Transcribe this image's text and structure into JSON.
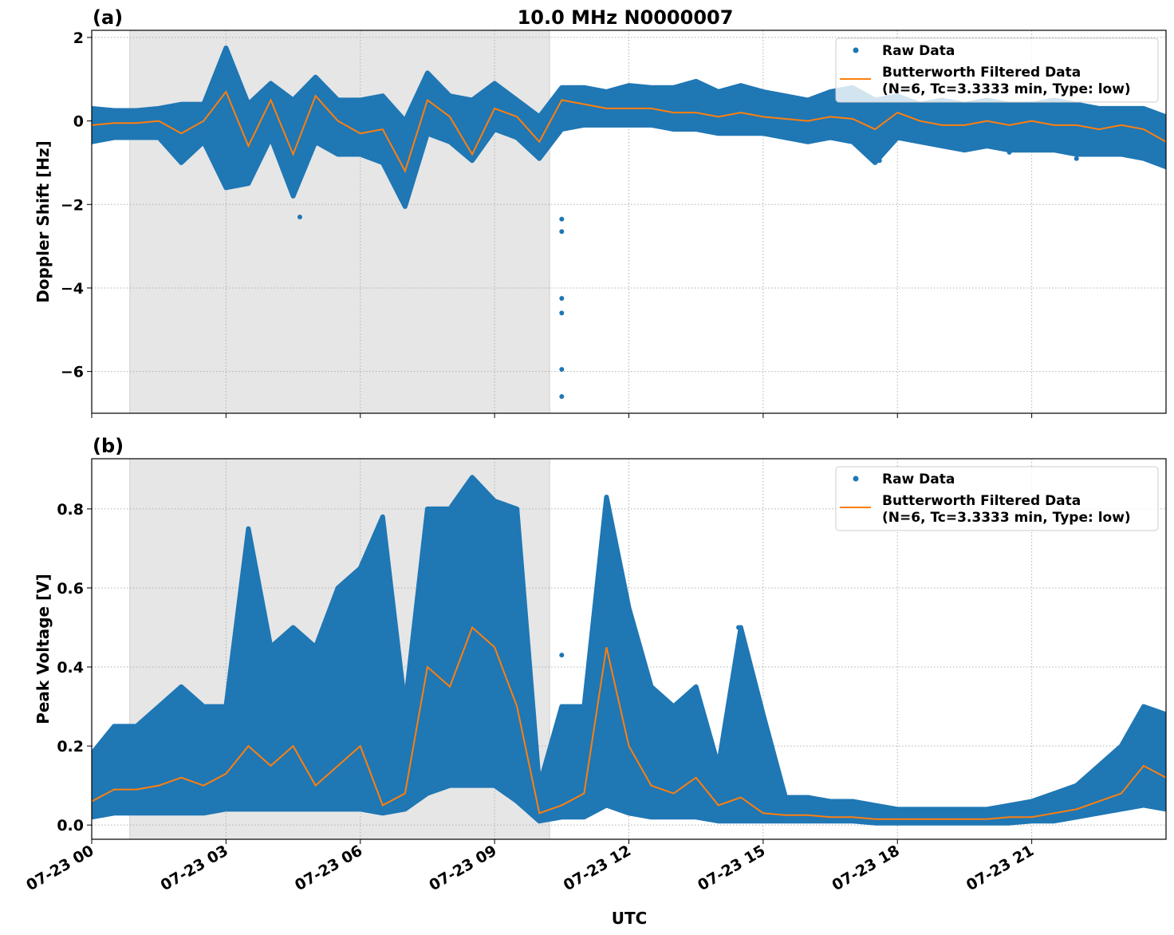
{
  "title": "10.0 MHz N0000007",
  "colors": {
    "raw": "#1f77b4",
    "filtered": "#ff7f0e",
    "shade": "#e6e6e6",
    "grid": "#b0b0b0"
  },
  "x_tick_labels": [
    "07-23 00",
    "07-23 03",
    "07-23 06",
    "07-23 09",
    "07-23 12",
    "07-23 15",
    "07-23 18",
    "07-23 21"
  ],
  "x_ticks_hours": [
    0,
    3,
    6,
    9,
    12,
    15,
    18,
    21
  ],
  "xlabel": "UTC",
  "chart_data": [
    {
      "type": "scatter",
      "panel_label": "(a)",
      "ylabel": "Doppler Shift [Hz]",
      "xlim_hours": [
        0,
        24
      ],
      "ylim": [
        -7.0,
        2.17
      ],
      "y_ticks": [
        2,
        0,
        -2,
        -4,
        -6
      ],
      "y_tick_labels": [
        "2",
        "0",
        "−2",
        "−4",
        "−6"
      ],
      "grid": true,
      "legend_position": "top-right",
      "legend": [
        "Raw Data",
        "Butterworth Filtered Data",
        "(N=6, Tc=3.3333 min, Type: low)"
      ],
      "shaded_interval_hours": [
        0.85,
        10.23
      ],
      "x_hours_step": 0.5,
      "raw_high": [
        0.3,
        0.25,
        0.25,
        0.3,
        0.4,
        0.4,
        1.75,
        0.4,
        0.9,
        0.5,
        1.05,
        0.5,
        0.5,
        0.6,
        0.0,
        1.15,
        0.6,
        0.5,
        0.9,
        0.5,
        0.1,
        0.8,
        0.8,
        0.7,
        0.85,
        0.8,
        0.8,
        0.95,
        0.7,
        0.85,
        0.7,
        0.6,
        0.5,
        0.7,
        0.8,
        0.5,
        0.6,
        0.4,
        0.5,
        0.4,
        0.5,
        0.4,
        0.4,
        0.5,
        0.4,
        0.3,
        0.3,
        0.3,
        0.1
      ],
      "raw_low": [
        -0.5,
        -0.4,
        -0.4,
        -0.4,
        -1.0,
        -0.5,
        -1.6,
        -1.5,
        -0.4,
        -1.8,
        -0.5,
        -0.8,
        -0.8,
        -1.0,
        -2.05,
        -0.3,
        -0.5,
        -0.95,
        -0.2,
        -0.4,
        -0.9,
        -0.2,
        -0.1,
        -0.1,
        -0.1,
        -0.1,
        -0.2,
        -0.2,
        -0.3,
        -0.3,
        -0.3,
        -0.4,
        -0.5,
        -0.4,
        -0.5,
        -1.0,
        -0.4,
        -0.5,
        -0.6,
        -0.7,
        -0.6,
        -0.7,
        -0.7,
        -0.7,
        -0.8,
        -0.8,
        -0.8,
        -0.9,
        -1.1
      ],
      "raw_outliers": [
        [
          4.65,
          -2.3
        ],
        [
          10.5,
          -2.35
        ],
        [
          10.5,
          -2.65
        ],
        [
          10.5,
          -4.25
        ],
        [
          10.5,
          -4.6
        ],
        [
          10.5,
          -5.95
        ],
        [
          10.5,
          -6.6
        ],
        [
          17.6,
          -0.95
        ],
        [
          20.5,
          -0.75
        ],
        [
          22.0,
          -0.9
        ]
      ],
      "filtered": [
        -0.1,
        -0.05,
        -0.05,
        0.0,
        -0.3,
        0.0,
        0.7,
        -0.6,
        0.5,
        -0.8,
        0.6,
        0.0,
        -0.3,
        -0.2,
        -1.2,
        0.5,
        0.1,
        -0.8,
        0.3,
        0.1,
        -0.5,
        0.5,
        0.4,
        0.3,
        0.3,
        0.3,
        0.2,
        0.2,
        0.1,
        0.2,
        0.1,
        0.05,
        0.0,
        0.1,
        0.05,
        -0.2,
        0.2,
        0.0,
        -0.1,
        -0.1,
        0.0,
        -0.1,
        0.0,
        -0.1,
        -0.1,
        -0.2,
        -0.1,
        -0.2,
        -0.5
      ]
    },
    {
      "type": "scatter",
      "panel_label": "(b)",
      "ylabel": "Peak Voltage [V]",
      "xlim_hours": [
        0,
        24
      ],
      "ylim": [
        -0.036,
        0.927
      ],
      "y_ticks": [
        0.0,
        0.2,
        0.4,
        0.6,
        0.8
      ],
      "y_tick_labels": [
        "0.0",
        "0.2",
        "0.4",
        "0.6",
        "0.8"
      ],
      "grid": true,
      "legend_position": "top-right",
      "legend": [
        "Raw Data",
        "Butterworth Filtered Data",
        "(N=6, Tc=3.3333 min, Type: low)"
      ],
      "shaded_interval_hours": [
        0.85,
        10.23
      ],
      "x_hours_step": 0.5,
      "raw_high": [
        0.18,
        0.25,
        0.25,
        0.3,
        0.35,
        0.3,
        0.3,
        0.75,
        0.45,
        0.5,
        0.45,
        0.6,
        0.65,
        0.78,
        0.3,
        0.8,
        0.8,
        0.88,
        0.82,
        0.8,
        0.1,
        0.3,
        0.3,
        0.83,
        0.55,
        0.35,
        0.3,
        0.35,
        0.15,
        0.5,
        0.28,
        0.07,
        0.07,
        0.06,
        0.06,
        0.05,
        0.04,
        0.04,
        0.04,
        0.04,
        0.04,
        0.05,
        0.06,
        0.08,
        0.1,
        0.15,
        0.2,
        0.3,
        0.28
      ],
      "raw_low": [
        0.02,
        0.03,
        0.03,
        0.03,
        0.03,
        0.03,
        0.04,
        0.04,
        0.04,
        0.04,
        0.04,
        0.04,
        0.04,
        0.03,
        0.04,
        0.08,
        0.1,
        0.1,
        0.1,
        0.06,
        0.01,
        0.02,
        0.02,
        0.05,
        0.03,
        0.02,
        0.02,
        0.02,
        0.01,
        0.01,
        0.01,
        0.01,
        0.01,
        0.01,
        0.01,
        0.005,
        0.005,
        0.005,
        0.005,
        0.005,
        0.005,
        0.005,
        0.01,
        0.01,
        0.02,
        0.03,
        0.04,
        0.05,
        0.04
      ],
      "raw_outliers": [
        [
          10.5,
          0.43
        ],
        [
          14.45,
          0.5
        ],
        [
          3.05,
          0.3
        ]
      ],
      "filtered": [
        0.06,
        0.09,
        0.09,
        0.1,
        0.12,
        0.1,
        0.13,
        0.2,
        0.15,
        0.2,
        0.1,
        0.15,
        0.2,
        0.05,
        0.08,
        0.4,
        0.35,
        0.5,
        0.45,
        0.3,
        0.03,
        0.05,
        0.08,
        0.45,
        0.2,
        0.1,
        0.08,
        0.12,
        0.05,
        0.07,
        0.03,
        0.025,
        0.025,
        0.02,
        0.02,
        0.015,
        0.015,
        0.015,
        0.015,
        0.015,
        0.015,
        0.02,
        0.02,
        0.03,
        0.04,
        0.06,
        0.08,
        0.15,
        0.12
      ]
    }
  ]
}
